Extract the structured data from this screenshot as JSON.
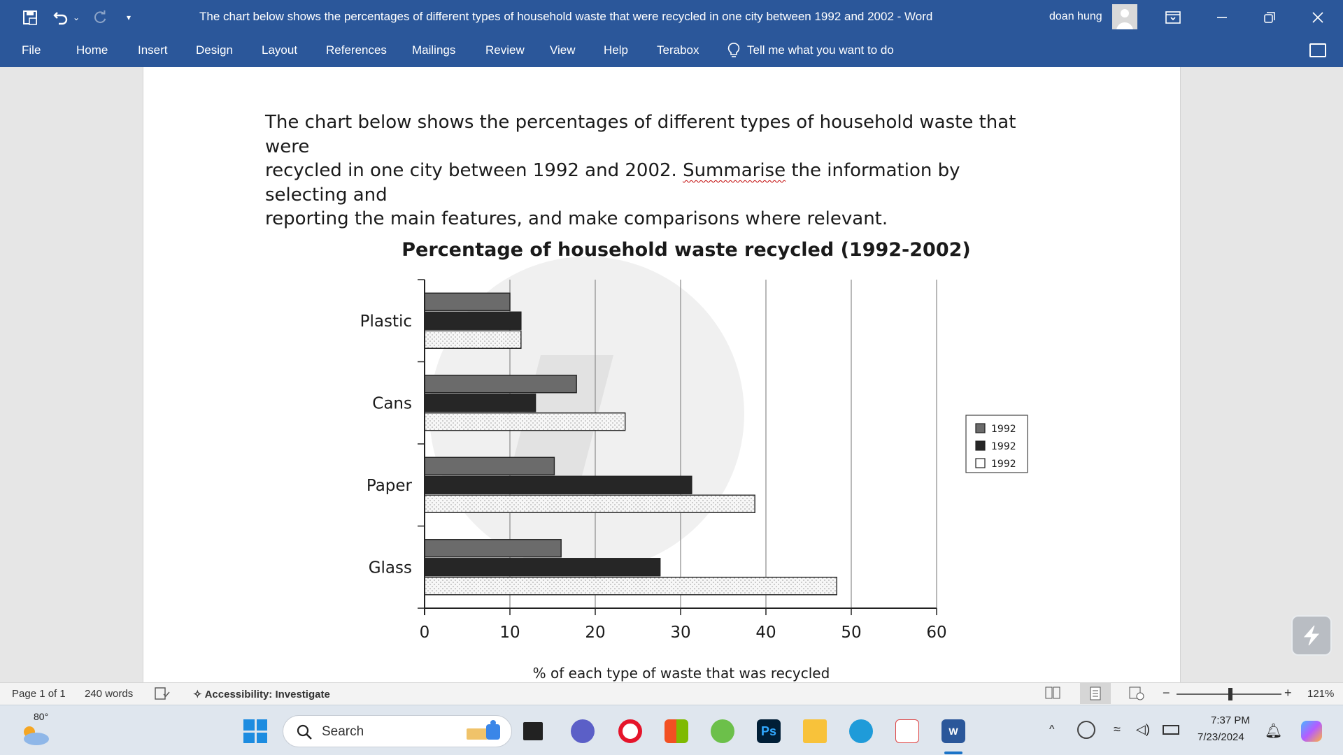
{
  "window": {
    "title": "The chart below shows the percentages of different types of household waste that were recycled in one city between 1992 and 2002  -  Word",
    "user_name": "doan hung"
  },
  "menu": {
    "tabs": [
      "File",
      "Home",
      "Insert",
      "Design",
      "Layout",
      "References",
      "Mailings",
      "Review",
      "View",
      "Help",
      "Terabox"
    ],
    "tell_me": "Tell me what you want to do"
  },
  "document": {
    "prompt_line1": "The chart below shows the percentages of different types of household waste that were",
    "prompt_line2_a": "recycled in one city between 1992 and 2002. ",
    "prompt_line2_b": "Summarise",
    "prompt_line2_c": " the information by selecting and",
    "prompt_line3": "reporting the main features, and make comparisons where relevant."
  },
  "chart_data": {
    "type": "bar",
    "orientation": "horizontal",
    "title": "Percentage of household waste recycled (1992-2002)",
    "xlabel": "% of each type of waste that was recycled",
    "ylabel": "",
    "xlim": [
      0,
      60
    ],
    "xticks": [
      "0",
      "10",
      "20",
      "30",
      "40",
      "50",
      "60"
    ],
    "categories": [
      "Plastic",
      "Cans",
      "Paper",
      "Glass"
    ],
    "series": [
      {
        "name": "1992",
        "values": [
          10,
          17.8,
          15.2,
          16
        ],
        "color": "#6b6b6b",
        "pattern": "solid"
      },
      {
        "name": "1992",
        "values": [
          11.3,
          13,
          31.3,
          27.6
        ],
        "color": "#262626",
        "pattern": "solid"
      },
      {
        "name": "1992",
        "values": [
          11.3,
          23.5,
          38.7,
          48.3
        ],
        "color": "#f5f5f5",
        "pattern": "dotted"
      }
    ],
    "grid": true,
    "legend_position": "right"
  },
  "status": {
    "page": "Page 1 of 1",
    "words": "240 words",
    "accessibility": "Accessibility: Investigate",
    "zoom": "121%"
  },
  "taskbar": {
    "weather": "80°",
    "search": "Search",
    "time": "7:37 PM",
    "date": "7/23/2024"
  },
  "colors": {
    "word_blue": "#2b579a"
  }
}
